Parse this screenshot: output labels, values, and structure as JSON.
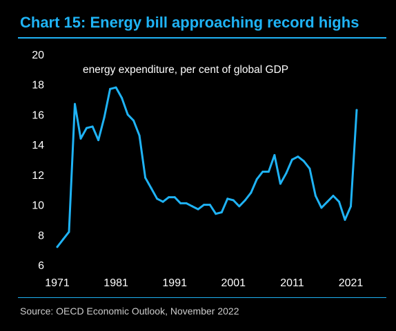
{
  "colors": {
    "background": "#000000",
    "accent": "#1FB3F5",
    "text": "#FFFFFF",
    "muted_text": "#CCCCCC",
    "line": "#1FB3F5"
  },
  "title": "Chart 15: Energy bill approaching record highs",
  "source": "Source: OECD Economic Outlook, November 2022",
  "chart_data": {
    "type": "line",
    "title": "",
    "subtitle": "energy expenditure, per cent of global GDP",
    "xlabel": "",
    "ylabel": "",
    "xlim": [
      1971,
      2022
    ],
    "ylim": [
      6,
      20
    ],
    "x_ticks": [
      1971,
      1981,
      1991,
      2001,
      2011,
      2021
    ],
    "y_ticks": [
      6,
      8,
      10,
      12,
      14,
      16,
      18,
      20
    ],
    "grid": false,
    "series": [
      {
        "x": [
          1971,
          1972,
          1973,
          1974,
          1975,
          1976,
          1977,
          1978,
          1979,
          1980,
          1981,
          1982,
          1983,
          1984,
          1985,
          1986,
          1987,
          1988,
          1989,
          1990,
          1991,
          1992,
          1993,
          1994,
          1995,
          1996,
          1997,
          1998,
          1999,
          2000,
          2001,
          2002,
          2003,
          2004,
          2005,
          2006,
          2007,
          2008,
          2009,
          2010,
          2011,
          2012,
          2013,
          2014,
          2015,
          2016,
          2017,
          2018,
          2019,
          2020,
          2021,
          2022
        ],
        "values": [
          7.2,
          7.7,
          8.2,
          16.7,
          14.4,
          15.1,
          15.2,
          14.3,
          15.8,
          17.7,
          17.8,
          17.1,
          16.0,
          15.6,
          14.6,
          11.8,
          11.1,
          10.4,
          10.2,
          10.5,
          10.5,
          10.1,
          10.1,
          9.9,
          9.7,
          10.0,
          10.0,
          9.4,
          9.5,
          10.4,
          10.3,
          9.9,
          10.3,
          10.8,
          11.7,
          12.2,
          12.2,
          13.3,
          11.4,
          12.1,
          13.0,
          13.2,
          12.9,
          12.4,
          10.6,
          9.8,
          10.2,
          10.6,
          10.2,
          9.0,
          9.9,
          16.3
        ]
      }
    ]
  }
}
